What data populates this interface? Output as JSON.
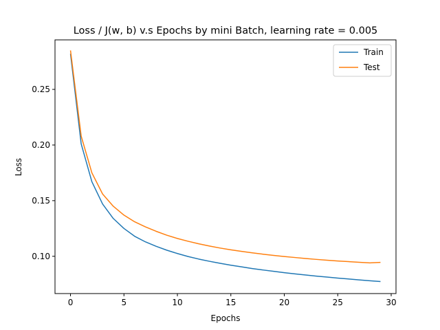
{
  "chart_data": {
    "type": "line",
    "title": "Loss / J(w, b) v.s Epochs by mini Batch, learning rate = 0.005",
    "xlabel": "Epochs",
    "ylabel": "Loss",
    "xlim": [
      -1.45,
      30.45
    ],
    "ylim": [
      0.0665,
      0.2945
    ],
    "xticks": [
      0,
      5,
      10,
      15,
      20,
      25,
      30
    ],
    "yticks": [
      0.1,
      0.15,
      0.2,
      0.25
    ],
    "xtick_labels": [
      "0",
      "5",
      "10",
      "15",
      "20",
      "25",
      "30"
    ],
    "ytick_labels": [
      "0.10",
      "0.15",
      "0.20",
      "0.25"
    ],
    "grid": false,
    "legend_position": "top-right",
    "x": [
      0,
      1,
      2,
      3,
      4,
      5,
      6,
      7,
      8,
      9,
      10,
      11,
      12,
      13,
      14,
      15,
      16,
      17,
      18,
      19,
      20,
      21,
      22,
      23,
      24,
      25,
      26,
      27,
      28,
      29
    ],
    "series": [
      {
        "name": "Train",
        "color": "#1f77b4",
        "values": [
          0.282,
          0.201,
          0.167,
          0.147,
          0.134,
          0.125,
          0.118,
          0.113,
          0.109,
          0.1055,
          0.1025,
          0.0998,
          0.0975,
          0.0955,
          0.0937,
          0.092,
          0.0905,
          0.089,
          0.0877,
          0.0865,
          0.0853,
          0.0842,
          0.0832,
          0.0822,
          0.0813,
          0.0804,
          0.0796,
          0.0788,
          0.078,
          0.0773
        ]
      },
      {
        "name": "Test",
        "color": "#ff7f0e",
        "values": [
          0.285,
          0.208,
          0.175,
          0.156,
          0.145,
          0.137,
          0.131,
          0.1265,
          0.1225,
          0.119,
          0.116,
          0.1135,
          0.1112,
          0.1092,
          0.1074,
          0.1058,
          0.1044,
          0.1031,
          0.1019,
          0.1008,
          0.0998,
          0.0989,
          0.098,
          0.0972,
          0.0965,
          0.0958,
          0.0952,
          0.0946,
          0.0941,
          0.0945
        ]
      }
    ]
  }
}
